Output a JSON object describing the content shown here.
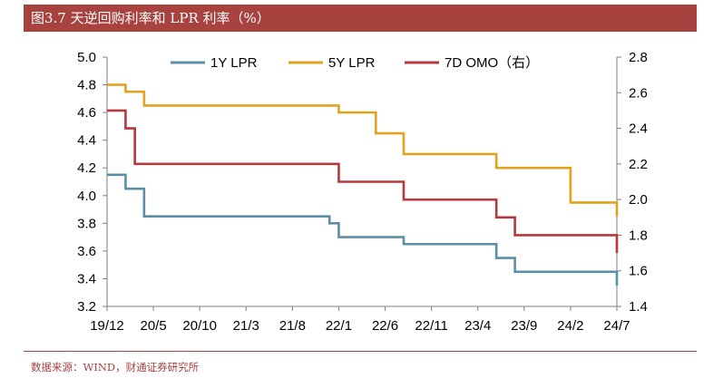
{
  "title": "图3.7 天逆回购利率和 LPR 利率（%）",
  "source": "数据来源：WIND，财通证券研究所",
  "chart_data": {
    "type": "line",
    "x_tick_labels": [
      "19/12",
      "20/5",
      "20/10",
      "21/3",
      "21/8",
      "22/1",
      "22/6",
      "22/11",
      "23/4",
      "23/9",
      "24/2",
      "24/7"
    ],
    "x_range": [
      "2019-12",
      "2024-07"
    ],
    "y_left": {
      "ticks": [
        "3.2",
        "3.4",
        "3.6",
        "3.8",
        "4.0",
        "4.2",
        "4.4",
        "4.6",
        "4.8",
        "5.0"
      ],
      "range": [
        3.2,
        5.0
      ]
    },
    "y_right": {
      "ticks": [
        "1.4",
        "1.6",
        "1.8",
        "2.0",
        "2.2",
        "2.4",
        "2.6",
        "2.8"
      ],
      "range": [
        1.4,
        2.8
      ]
    },
    "grid": false,
    "legend_position": "top",
    "series": [
      {
        "name": "1Y LPR",
        "axis": "left",
        "color": "#5b8fa8",
        "points": [
          [
            "2019-12",
            4.15
          ],
          [
            "2020-02",
            4.05
          ],
          [
            "2020-04",
            3.85
          ],
          [
            "2021-11",
            3.85
          ],
          [
            "2021-12",
            3.8
          ],
          [
            "2022-01",
            3.7
          ],
          [
            "2022-08",
            3.65
          ],
          [
            "2023-06",
            3.55
          ],
          [
            "2023-08",
            3.45
          ],
          [
            "2024-07",
            3.45
          ],
          [
            "2024-07",
            3.35
          ]
        ]
      },
      {
        "name": "5Y LPR",
        "axis": "left",
        "color": "#e0a21f",
        "points": [
          [
            "2019-12",
            4.8
          ],
          [
            "2020-02",
            4.75
          ],
          [
            "2020-04",
            4.65
          ],
          [
            "2022-01",
            4.6
          ],
          [
            "2022-05",
            4.45
          ],
          [
            "2022-08",
            4.3
          ],
          [
            "2023-06",
            4.2
          ],
          [
            "2024-02",
            3.95
          ],
          [
            "2024-07",
            3.95
          ],
          [
            "2024-07",
            3.85
          ]
        ]
      },
      {
        "name": "7D OMO（右）",
        "axis": "right",
        "color": "#b5383d",
        "points": [
          [
            "2019-12",
            2.5
          ],
          [
            "2020-02",
            2.4
          ],
          [
            "2020-03",
            2.2
          ],
          [
            "2022-01",
            2.1
          ],
          [
            "2022-08",
            2.0
          ],
          [
            "2023-06",
            1.9
          ],
          [
            "2023-08",
            1.8
          ],
          [
            "2024-07",
            1.8
          ],
          [
            "2024-07",
            1.7
          ]
        ]
      }
    ]
  }
}
